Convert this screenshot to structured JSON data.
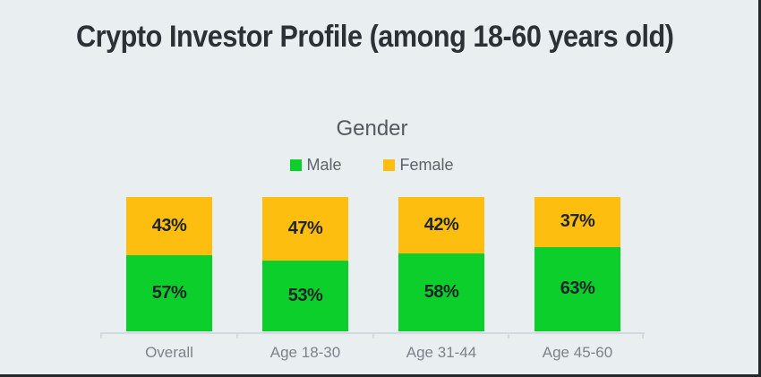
{
  "title": "Crypto Investor Profile (among 18-60 years old)",
  "chart_data": {
    "type": "bar",
    "stacked": true,
    "percent_stacked": true,
    "title": "Crypto Investor Profile (among 18-60 years old)",
    "subtitle": "Gender",
    "categories": [
      "Overall",
      "Age 18-30",
      "Age 31-44",
      "Age 45-60"
    ],
    "series": [
      {
        "name": "Male",
        "color": "#0ccf2c",
        "values": [
          57,
          53,
          58,
          63
        ]
      },
      {
        "name": "Female",
        "color": "#fdbe10",
        "values": [
          43,
          47,
          42,
          37
        ]
      }
    ],
    "value_suffix": "%",
    "ylim": [
      0,
      100
    ],
    "grid": false,
    "legend_position": "top-center",
    "value_labels": "inside-center"
  },
  "colors": {
    "background": "#e9eef0",
    "border": "#26292c",
    "title_text": "#2b3136",
    "subtitle_text": "#53595d",
    "legend_text": "#5d6367",
    "value_text": "#1f2529",
    "axis_line": "#d3dadd",
    "category_text": "#7c8388"
  }
}
